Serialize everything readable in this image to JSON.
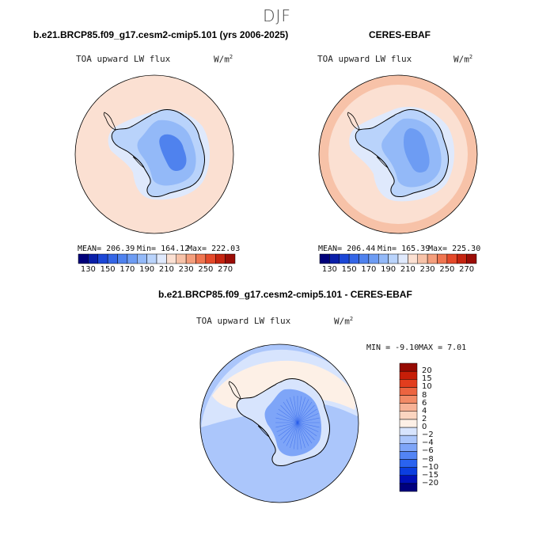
{
  "page": {
    "season": "DJF"
  },
  "colors": {
    "continent_outline": "#000000",
    "grid_outline": "#000000"
  },
  "chart_data": [
    {
      "type": "heatmap",
      "title": "b.e21.BRCP85.f09_g17.cesm2-cmip5.101 (yrs 2006-2025)",
      "variable": "TOA upward LW flux",
      "units": "W/m",
      "units_exp": "2",
      "projection": "polar-stereographic-south",
      "stats": {
        "mean": "MEAN= 206.39",
        "min": "Min= 164.12",
        "max": "Max= 222.03"
      },
      "colorbar": {
        "orientation": "horizontal",
        "levels": [
          130,
          140,
          150,
          160,
          170,
          180,
          190,
          200,
          210,
          220,
          230,
          240,
          250,
          260,
          270
        ],
        "tick_labels": [
          "130",
          "150",
          "170",
          "190",
          "210",
          "230",
          "250",
          "270"
        ],
        "colors": [
          "#00007a",
          "#0a1fa8",
          "#1c47d6",
          "#3566e6",
          "#4f82ee",
          "#6d9cf3",
          "#93b9f8",
          "#b9d3fb",
          "#dfe9fc",
          "#fbe0d2",
          "#f7c2a8",
          "#f49e7c",
          "#ef7550",
          "#e4492a",
          "#c52410",
          "#9a0c05"
        ]
      },
      "field_summary": {
        "ocean": 214,
        "pack_ice": 200,
        "coast": 190,
        "plateau_outer": 180,
        "plateau_inner": 168
      }
    },
    {
      "type": "heatmap",
      "title": "CERES-EBAF",
      "variable": "TOA upward LW flux",
      "units": "W/m",
      "units_exp": "2",
      "projection": "polar-stereographic-south",
      "stats": {
        "mean": "MEAN= 206.44",
        "min": "Min= 165.39",
        "max": "Max= 225.30"
      },
      "colorbar": {
        "orientation": "horizontal",
        "levels": [
          130,
          140,
          150,
          160,
          170,
          180,
          190,
          200,
          210,
          220,
          230,
          240,
          250,
          260,
          270
        ],
        "tick_labels": [
          "130",
          "150",
          "170",
          "190",
          "210",
          "230",
          "250",
          "270"
        ],
        "colors": [
          "#00007a",
          "#0a1fa8",
          "#1c47d6",
          "#3566e6",
          "#4f82ee",
          "#6d9cf3",
          "#93b9f8",
          "#b9d3fb",
          "#dfe9fc",
          "#fbe0d2",
          "#f7c2a8",
          "#f49e7c",
          "#ef7550",
          "#e4492a",
          "#c52410",
          "#9a0c05"
        ]
      },
      "field_summary": {
        "ocean_outer": 222,
        "ocean": 214,
        "pack_ice": 208,
        "coast": 192,
        "plateau_outer": 182,
        "plateau_inner": 170
      }
    },
    {
      "type": "heatmap",
      "title": "b.e21.BRCP85.f09_g17.cesm2-cmip5.101 - CERES-EBAF",
      "variable": "TOA upward LW flux",
      "units": "W/m",
      "units_exp": "2",
      "projection": "polar-stereographic-south",
      "stats": {
        "min": "MIN =   -9.10",
        "max": "MAX =    7.01"
      },
      "colorbar": {
        "orientation": "vertical",
        "levels": [
          -20,
          -15,
          -10,
          -8,
          -6,
          -4,
          -2,
          0,
          2,
          4,
          6,
          8,
          10,
          15,
          20
        ],
        "tick_labels": [
          "-20",
          "-15",
          "-10",
          "-8",
          "-6",
          "-4",
          "-2",
          "0",
          "2",
          "4",
          "6",
          "8",
          "10",
          "15",
          "20"
        ],
        "colors": [
          "#00007f",
          "#0010b8",
          "#0b3ee0",
          "#2a63f0",
          "#5284f5",
          "#7ea5f8",
          "#abc6fb",
          "#d7e4fd",
          "#fdf0e6",
          "#fbd5c0",
          "#f7b296",
          "#f28a66",
          "#ec6440",
          "#e23d1e",
          "#c71e08",
          "#960a02"
        ]
      },
      "field_summary": {
        "ocean_north": -3,
        "ocean_mid": -1,
        "ice_edge": 1,
        "coast": -2,
        "plateau": -5
      }
    }
  ]
}
